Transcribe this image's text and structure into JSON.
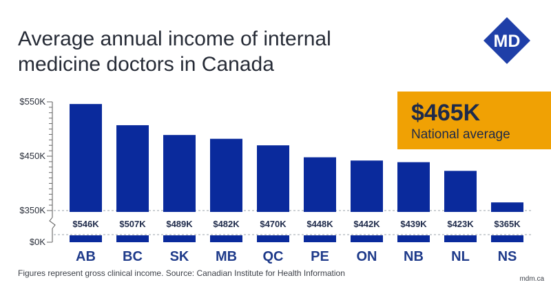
{
  "title_lines": [
    "Average annual income of internal",
    "medicine doctors in Canada"
  ],
  "logo_text": "MD",
  "callout": {
    "value": "$465K",
    "label": "National average"
  },
  "footnote": "Figures represent gross clinical income. Source: Canadian Institute for Health Information",
  "site": "mdm.ca",
  "colors": {
    "bar": "#0a2a9c",
    "accent": "#f0a104",
    "logo": "#1f3fa8"
  },
  "chart_data": {
    "type": "bar",
    "title": "Average annual income of internal medicine doctors in Canada",
    "categories": [
      "AB",
      "BC",
      "SK",
      "MB",
      "QC",
      "PE",
      "ON",
      "NB",
      "NL",
      "NS"
    ],
    "values": [
      546,
      507,
      489,
      482,
      470,
      448,
      442,
      439,
      423,
      365
    ],
    "value_labels": [
      "$546K",
      "$507K",
      "$489K",
      "$482K",
      "$470K",
      "$448K",
      "$442K",
      "$439K",
      "$423K",
      "$365K"
    ],
    "y_unit": "thousand dollars",
    "y_axis_break": true,
    "ylim": [
      350,
      550
    ],
    "y_ticks": [
      {
        "value": 550,
        "label": "$550K"
      },
      {
        "value": 450,
        "label": "$450K"
      },
      {
        "value": 350,
        "label": "$350K"
      }
    ],
    "y_base_label": "$0K",
    "grid": false
  }
}
